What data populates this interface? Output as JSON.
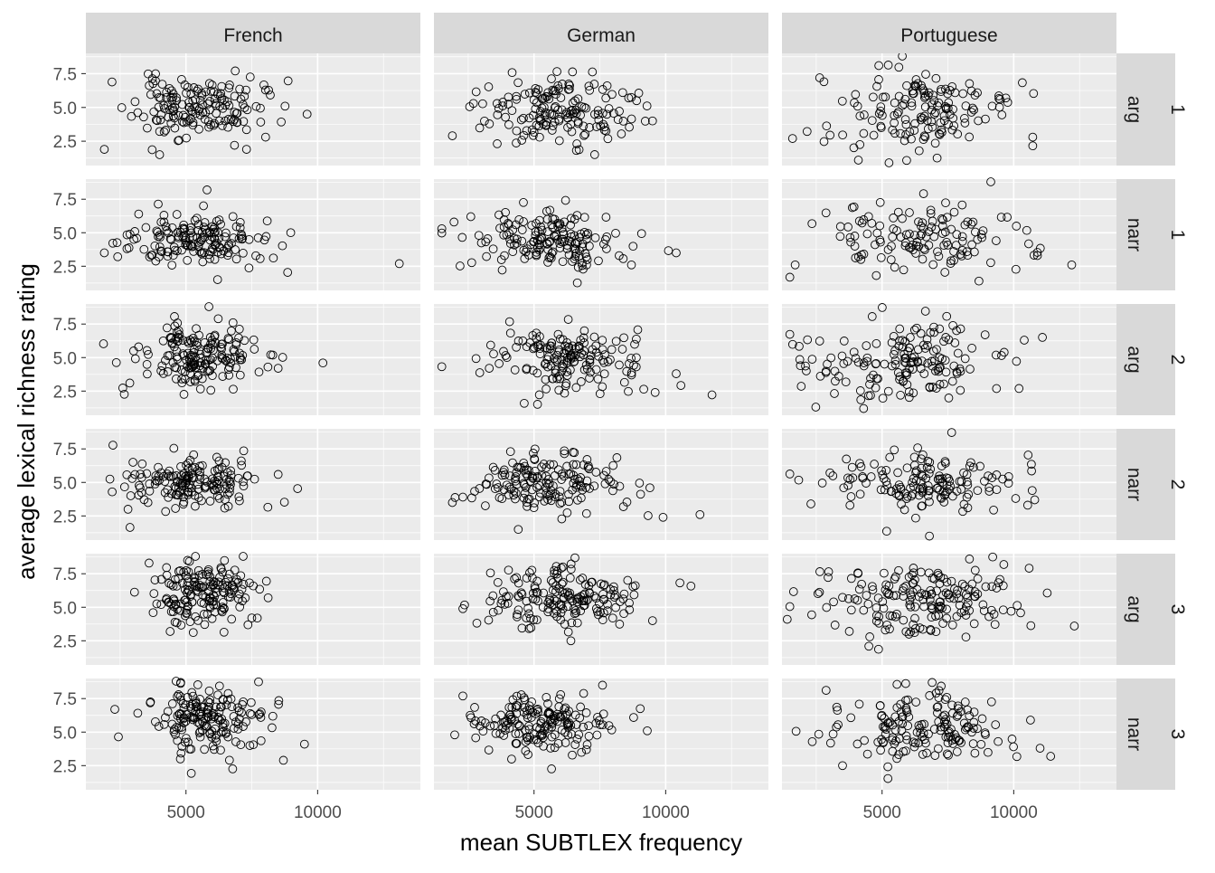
{
  "chart_data": {
    "type": "scatter",
    "title": "",
    "xlabel": "mean SUBTLEX frequency",
    "ylabel": "average lexical richness rating",
    "xlim": [
      1200,
      13900
    ],
    "ylim": [
      0.7,
      9.0
    ],
    "x_ticks": [
      5000,
      10000
    ],
    "x_tick_labels": [
      "5000",
      "10000"
    ],
    "y_ticks": [
      2.5,
      5.0,
      7.5
    ],
    "y_tick_labels": [
      "2.5",
      "5.0",
      "7.5"
    ],
    "grid": true,
    "legend": "none",
    "colors": {
      "panel_background": "#ebebeb",
      "grid_major": "#ffffff",
      "strip_background": "#d9d9d9",
      "strip_text": "#1a1a1a",
      "axis_text": "#4d4d4d",
      "axis_title": "#000000",
      "point_stroke": "#000000"
    },
    "column_facets": [
      "French",
      "German",
      "Portuguese"
    ],
    "row_facets": [
      {
        "top": "arg",
        "bottom": "1"
      },
      {
        "top": "narr",
        "bottom": "1"
      },
      {
        "top": "arg",
        "bottom": "2"
      },
      {
        "top": "narr",
        "bottom": "2"
      },
      {
        "top": "arg",
        "bottom": "3"
      },
      {
        "top": "narr",
        "bottom": "3"
      }
    ],
    "panels": [
      {
        "column": "French",
        "row": "arg 1",
        "cx": 5400,
        "cy": 5.0,
        "sx": 1200,
        "sy": 1.1,
        "n": 160,
        "seed": 11,
        "extra_points": [
          [
            1900,
            1.9
          ],
          [
            9600,
            4.5
          ],
          [
            7300,
            1.9
          ],
          [
            4000,
            1.5
          ]
        ]
      },
      {
        "column": "German",
        "row": "arg 1",
        "cx": 6000,
        "cy": 4.8,
        "sx": 1400,
        "sy": 1.2,
        "n": 160,
        "seed": 12,
        "extra_points": [
          [
            1900,
            2.9
          ],
          [
            2700,
            5.3
          ],
          [
            9500,
            4.0
          ]
        ]
      },
      {
        "column": "Portuguese",
        "row": "arg 1",
        "cx": 6100,
        "cy": 4.8,
        "sx": 1800,
        "sy": 1.5,
        "n": 150,
        "seed": 13,
        "extra_points": [
          [
            1600,
            2.7
          ],
          [
            9700,
            5.7
          ],
          [
            4100,
            1.1
          ]
        ]
      },
      {
        "column": "French",
        "row": "narr 1",
        "cx": 5400,
        "cy": 4.5,
        "sx": 1400,
        "sy": 1.0,
        "n": 160,
        "seed": 21,
        "extra_points": [
          [
            13100,
            2.7
          ],
          [
            1900,
            3.5
          ],
          [
            5800,
            8.2
          ],
          [
            6200,
            1.5
          ]
        ]
      },
      {
        "column": "German",
        "row": "narr 1",
        "cx": 5400,
        "cy": 4.6,
        "sx": 1500,
        "sy": 1.0,
        "n": 160,
        "seed": 22,
        "extra_points": [
          [
            10400,
            3.5
          ],
          [
            8700,
            2.6
          ],
          [
            2600,
            6.2
          ]
        ]
      },
      {
        "column": "Portuguese",
        "row": "narr 1",
        "cx": 6600,
        "cy": 4.6,
        "sx": 2000,
        "sy": 1.3,
        "n": 130,
        "seed": 23,
        "extra_points": [
          [
            12200,
            2.6
          ],
          [
            1700,
            2.6
          ],
          [
            10900,
            3.3
          ]
        ]
      },
      {
        "column": "French",
        "row": "arg 2",
        "cx": 5500,
        "cy": 5.1,
        "sx": 1100,
        "sy": 1.2,
        "n": 170,
        "seed": 31,
        "extra_points": [
          [
            10200,
            4.6
          ],
          [
            8500,
            4.2
          ],
          [
            3200,
            5.8
          ]
        ]
      },
      {
        "column": "German",
        "row": "arg 2",
        "cx": 6200,
        "cy": 5.0,
        "sx": 1500,
        "sy": 1.2,
        "n": 160,
        "seed": 32,
        "extra_points": [
          [
            10400,
            3.8
          ],
          [
            9600,
            2.4
          ],
          [
            3300,
            4.2
          ]
        ]
      },
      {
        "column": "Portuguese",
        "row": "arg 2",
        "cx": 5800,
        "cy": 4.8,
        "sx": 1900,
        "sy": 1.5,
        "n": 160,
        "seed": 33,
        "extra_points": [
          [
            10400,
            6.3
          ],
          [
            10200,
            2.7
          ],
          [
            1900,
            4.4
          ],
          [
            4300,
            1.2
          ]
        ]
      },
      {
        "column": "French",
        "row": "narr 2",
        "cx": 5300,
        "cy": 5.0,
        "sx": 1200,
        "sy": 1.0,
        "n": 160,
        "seed": 41,
        "extra_points": [
          [
            2200,
            4.3
          ],
          [
            8500,
            5.6
          ],
          [
            2800,
            3.0
          ]
        ]
      },
      {
        "column": "German",
        "row": "narr 2",
        "cx": 5400,
        "cy": 5.1,
        "sx": 1500,
        "sy": 1.1,
        "n": 160,
        "seed": 42,
        "extra_points": [
          [
            11300,
            2.6
          ],
          [
            9900,
            2.4
          ],
          [
            1900,
            3.5
          ],
          [
            9400,
            4.6
          ]
        ]
      },
      {
        "column": "Portuguese",
        "row": "narr 2",
        "cx": 6500,
        "cy": 4.8,
        "sx": 1800,
        "sy": 1.2,
        "n": 150,
        "seed": 43,
        "extra_points": [
          [
            10700,
            4.4
          ],
          [
            2300,
            3.4
          ],
          [
            6800,
            1.0
          ]
        ]
      },
      {
        "column": "French",
        "row": "arg 3",
        "cx": 5500,
        "cy": 6.0,
        "sx": 900,
        "sy": 1.2,
        "n": 170,
        "seed": 51,
        "extra_points": [
          [
            3600,
            8.3
          ],
          [
            4400,
            3.2
          ],
          [
            7500,
            4.2
          ]
        ]
      },
      {
        "column": "German",
        "row": "arg 3",
        "cx": 6300,
        "cy": 5.8,
        "sx": 1400,
        "sy": 1.2,
        "n": 170,
        "seed": 52,
        "extra_points": [
          [
            2300,
            4.9
          ],
          [
            9500,
            4.0
          ],
          [
            6400,
            2.5
          ]
        ]
      },
      {
        "column": "Portuguese",
        "row": "arg 3",
        "cx": 6500,
        "cy": 5.6,
        "sx": 1800,
        "sy": 1.3,
        "n": 180,
        "seed": 53,
        "extra_points": [
          [
            1400,
            4.1
          ],
          [
            12300,
            3.6
          ],
          [
            9900,
            4.7
          ],
          [
            4500,
            2.1
          ]
        ]
      },
      {
        "column": "French",
        "row": "narr 3",
        "cx": 5600,
        "cy": 6.0,
        "sx": 1200,
        "sy": 1.2,
        "n": 170,
        "seed": 61,
        "extra_points": [
          [
            2300,
            6.7
          ],
          [
            8700,
            2.9
          ],
          [
            9500,
            4.1
          ],
          [
            4800,
            8.7
          ]
        ]
      },
      {
        "column": "German",
        "row": "narr 3",
        "cx": 5300,
        "cy": 5.6,
        "sx": 1300,
        "sy": 1.1,
        "n": 170,
        "seed": 62,
        "extra_points": [
          [
            2300,
            7.7
          ],
          [
            9300,
            5.1
          ],
          [
            7600,
            8.5
          ]
        ]
      },
      {
        "column": "Portuguese",
        "row": "narr 3",
        "cx": 6800,
        "cy": 5.3,
        "sx": 1600,
        "sy": 1.3,
        "n": 160,
        "seed": 63,
        "extra_points": [
          [
            11400,
            3.2
          ],
          [
            11000,
            3.8
          ],
          [
            3500,
            2.5
          ],
          [
            6900,
            8.7
          ]
        ]
      }
    ]
  }
}
